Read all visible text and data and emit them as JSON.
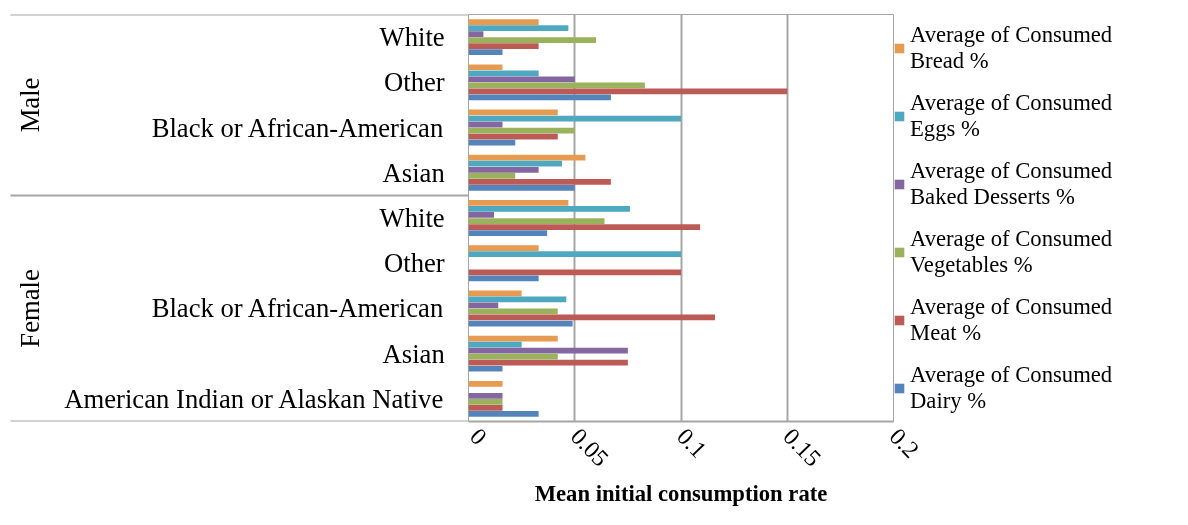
{
  "chart_data": {
    "type": "bar",
    "orientation": "horizontal",
    "xlabel": "Mean initial consumption rate",
    "categories": [
      "White",
      "Other",
      "Black or African-American",
      "Asian",
      "White",
      "Other",
      "Black or African-American",
      "Asian",
      "American Indian or Alaskan Native"
    ],
    "annotations": [
      "Male",
      "Female"
    ],
    "series": [
      {
        "name": "Average of Consumed Bread %",
        "color": "#e59b52",
        "values": [
          0.033,
          0.016,
          0.042,
          0.055,
          0.047,
          0.033,
          0.025,
          0.042,
          0.016
        ]
      },
      {
        "name": "Average of Consumed Eggs %",
        "color": "#4ea8c0",
        "values": [
          0.047,
          0.033,
          0.1,
          0.044,
          0.076,
          0.1,
          0.046,
          0.025,
          0
        ]
      },
      {
        "name": "Average of Consumed Baked Desserts %",
        "color": "#8466a0",
        "values": [
          0.007,
          0.05,
          0.016,
          0.033,
          0.012,
          0,
          0.014,
          0.075,
          0.016
        ]
      },
      {
        "name": "Average of Consumed Vegetables %",
        "color": "#9bb25d",
        "values": [
          0.06,
          0.083,
          0.05,
          0.022,
          0.064,
          0,
          0.042,
          0.042,
          0.016
        ]
      },
      {
        "name": "Average of Consumed Meat %",
        "color": "#bc5b56",
        "values": [
          0.033,
          0.15,
          0.042,
          0.067,
          0.109,
          0.1,
          0.116,
          0.075,
          0.016
        ]
      },
      {
        "name": "Average of Consumed Dairy %",
        "color": "#5484ba",
        "values": [
          0.016,
          0.067,
          0.022,
          0.05,
          0.037,
          0.033,
          0.049,
          0.016,
          0.033
        ]
      }
    ],
    "xlim": [
      0,
      0.2
    ],
    "xticks": [
      0,
      0.05,
      0.1,
      0.15,
      0.2
    ],
    "grid": "x",
    "legend": "right"
  }
}
